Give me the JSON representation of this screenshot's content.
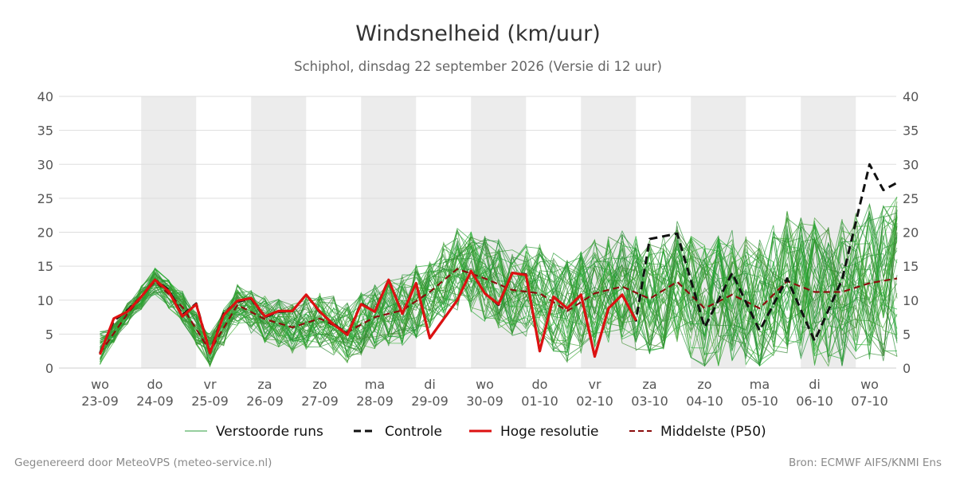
{
  "chart_data": {
    "type": "line",
    "title": "Windsnelheid (km/uur)",
    "subtitle": "Schiphol, dinsdag 22 september 2026 (Versie di 12 uur)",
    "ylim": [
      0,
      40
    ],
    "y_ticks": [
      0,
      5,
      10,
      15,
      20,
      25,
      30,
      35,
      40
    ],
    "x_range_days": [
      0,
      14.5
    ],
    "x_ticks": [
      {
        "day": "wo",
        "date": "23-09"
      },
      {
        "day": "do",
        "date": "24-09"
      },
      {
        "day": "vr",
        "date": "25-09"
      },
      {
        "day": "za",
        "date": "26-09"
      },
      {
        "day": "zo",
        "date": "27-09"
      },
      {
        "day": "ma",
        "date": "28-09"
      },
      {
        "day": "di",
        "date": "29-09"
      },
      {
        "day": "wo",
        "date": "30-09"
      },
      {
        "day": "do",
        "date": "01-10"
      },
      {
        "day": "vr",
        "date": "02-10"
      },
      {
        "day": "za",
        "date": "03-10"
      },
      {
        "day": "zo",
        "date": "04-10"
      },
      {
        "day": "ma",
        "date": "05-10"
      },
      {
        "day": "di",
        "date": "06-10"
      },
      {
        "day": "wo",
        "date": "07-10"
      }
    ],
    "shaded_bands": [
      [
        0.75,
        1.75
      ],
      [
        2.75,
        3.75
      ],
      [
        4.75,
        5.75
      ],
      [
        6.75,
        7.75
      ],
      [
        8.75,
        9.75
      ],
      [
        10.75,
        11.75
      ],
      [
        12.75,
        13.75
      ],
      [
        14.75,
        15.25
      ]
    ],
    "grid": true,
    "legend_position": "bottom",
    "series": [
      {
        "name": "Verstoorde runs",
        "style": "thin",
        "color": "#2e9e3e"
      },
      {
        "name": "Controle",
        "style": "dashed",
        "color": "#111111",
        "x": [
          0,
          0.25,
          0.5,
          0.75,
          1,
          1.25,
          1.5,
          1.75,
          2,
          2.25,
          2.5,
          2.75,
          3,
          3.25,
          3.5,
          3.75,
          4,
          4.25,
          4.5,
          4.75,
          5,
          5.25,
          5.5,
          5.75,
          6,
          6.25,
          6.5,
          6.75,
          7,
          7.25,
          7.5,
          7.75,
          8,
          8.25,
          8.5,
          8.75,
          9,
          9.25,
          9.5,
          9.75,
          10,
          10.5,
          11,
          11.5,
          12,
          12.5,
          13,
          13.5,
          14,
          14.25,
          14.5
        ],
        "values": [
          2.2,
          7,
          8.5,
          10.5,
          13,
          11.5,
          7.8,
          9.5,
          2.3,
          8,
          9.8,
          10.2,
          7.5,
          8.3,
          8.4,
          10.8,
          8.2,
          6.5,
          5,
          9.5,
          8.3,
          13,
          8,
          12.5,
          4.4,
          7.2,
          10,
          14.3,
          11,
          9.3,
          14,
          13.8,
          2.5,
          10.5,
          8.8,
          10.8,
          1.7,
          8.8,
          10.8,
          7,
          19,
          19.8,
          6,
          14,
          5.5,
          13.2,
          4,
          13,
          30,
          26.2,
          27.3
        ]
      },
      {
        "name": "Hoge resolutie",
        "style": "solid",
        "color": "#dd1111",
        "x": [
          0,
          0.25,
          0.5,
          0.75,
          1,
          1.25,
          1.5,
          1.75,
          2,
          2.25,
          2.5,
          2.75,
          3,
          3.25,
          3.5,
          3.75,
          4,
          4.25,
          4.5,
          4.75,
          5,
          5.25,
          5.5,
          5.75,
          6,
          6.25,
          6.5,
          6.75,
          7,
          7.25,
          7.5,
          7.75,
          8,
          8.25,
          8.5,
          8.75,
          9,
          9.25,
          9.5,
          9.75
        ],
        "values": [
          2,
          7.3,
          8.3,
          10.5,
          13,
          11.3,
          7.6,
          9.4,
          2.2,
          7.8,
          9.9,
          10.3,
          7.6,
          8.4,
          8.4,
          10.8,
          8.3,
          6.4,
          4.9,
          9.4,
          8.3,
          13,
          8,
          12.5,
          4.4,
          7.2,
          10,
          14.3,
          11,
          9.4,
          14,
          13.7,
          2.5,
          10.5,
          8.8,
          10.8,
          1.7,
          8.8,
          10.8,
          7
        ]
      },
      {
        "name": "Middelste (P50)",
        "style": "dashed",
        "color": "#8b0d0d",
        "x": [
          0,
          0.5,
          1,
          1.5,
          2,
          2.5,
          3,
          3.5,
          4,
          4.5,
          5,
          5.5,
          6,
          6.5,
          7,
          7.5,
          8,
          8.5,
          9,
          9.5,
          10,
          10.5,
          11,
          11.5,
          12,
          12.5,
          13,
          13.5,
          14,
          14.5
        ],
        "values": [
          2.2,
          8,
          12.8,
          9,
          2.5,
          9.3,
          7.2,
          6,
          7.3,
          5.3,
          7.5,
          8.5,
          11.2,
          14.6,
          13.2,
          11.5,
          11,
          8.4,
          11,
          12,
          10.2,
          12.7,
          8.8,
          10.8,
          8.8,
          12.8,
          11.2,
          11.2,
          12.5,
          13.2
        ]
      }
    ]
  },
  "footer": {
    "left": "Gegenereerd door MeteoVPS (meteo-service.nl)",
    "right": "Bron: ECMWF AIFS/KNMI Ens"
  }
}
